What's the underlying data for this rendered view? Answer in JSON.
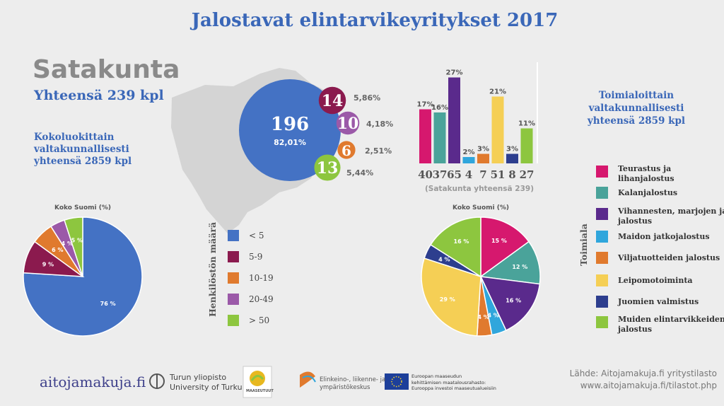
{
  "title": "Jalostavat elintarvikeyritykset  2017",
  "region": {
    "name": "Satakunta",
    "total": "Yhteensä 239 kpl"
  },
  "size_note": "Kokoluokittain valtakunnallisesti yhteensä 2859 kpl",
  "industry_note": "Toimialoittain valtakunnallisesti yhteensä 2859 kpl",
  "size_legend_title": "Henkilöstön määrä",
  "industry_legend_title": "Toimiala",
  "chart_data": [
    {
      "type": "bubble",
      "series_label": "Satakunta, henkilöstön määrä",
      "categories": [
        "< 5",
        "5-9",
        "10-19",
        "20-49",
        "> 50"
      ],
      "values": [
        196,
        14,
        6,
        10,
        13
      ],
      "value_labels": [
        "196",
        "14",
        "6",
        "10",
        "13"
      ],
      "percent_labels": [
        "82,01%",
        "5,86%",
        "2,51%",
        "4,18%",
        "5,44%"
      ],
      "colors": [
        "#4472c4",
        "#8b1a4e",
        "#e07a2e",
        "#9b59a8",
        "#8dc63f"
      ]
    },
    {
      "type": "pie",
      "title": "Koko Suomi (%)",
      "categories": [
        "< 5",
        "5-9",
        "10-19",
        "20-49",
        "> 50"
      ],
      "values": [
        76,
        9,
        6,
        4,
        5
      ],
      "labels": [
        "76 %",
        "9 %",
        "6 %",
        "4 %",
        "5 %"
      ],
      "colors": [
        "#4472c4",
        "#8b1a4e",
        "#e07a2e",
        "#9b59a8",
        "#8dc63f"
      ]
    },
    {
      "type": "bar",
      "xlabel": "(Satakunta yhteensä 239)",
      "categories": [
        "Teurastus ja lihanjalostus",
        "Kalanjalostus",
        "Vihannesten, marjojen ja hedelmien jalostus",
        "Maidon jatkojalostus",
        "Viljatuotteiden jalostus",
        "Leipomotoiminta",
        "Juomien valmistus",
        "Muiden elintarvikkeiden jalostus"
      ],
      "tick_labels": [
        "40",
        "37",
        "65",
        "4",
        "7",
        "51",
        "8",
        "27"
      ],
      "values": [
        17,
        16,
        27,
        2,
        3,
        21,
        3,
        11
      ],
      "value_labels": [
        "17%",
        "16%",
        "27%",
        "2%",
        "3%",
        "21%",
        "3%",
        "11%"
      ],
      "colors": [
        "#d6186e",
        "#4aa39a",
        "#5a2a8c",
        "#30a6dc",
        "#e07a2e",
        "#f5cf55",
        "#2d3e8e",
        "#8dc63f"
      ],
      "ylim": [
        0,
        30
      ]
    },
    {
      "type": "pie",
      "title": "Koko Suomi (%)",
      "categories": [
        "Teurastus ja lihanjalostus",
        "Kalanjalostus",
        "Vihannesten, marjojen ja hedelmien jalostus",
        "Maidon jatkojalostus",
        "Viljatuotteiden jalostus",
        "Leipomotoiminta",
        "Juomien valmistus",
        "Muiden elintarvikkeiden jalostus"
      ],
      "values": [
        15,
        12,
        16,
        4,
        4,
        29,
        4,
        16
      ],
      "labels": [
        "15 %",
        "12 %",
        "16 %",
        "4 %",
        "4 %",
        "29 %",
        "4 %",
        "16 %"
      ],
      "colors": [
        "#d6186e",
        "#4aa39a",
        "#5a2a8c",
        "#30a6dc",
        "#e07a2e",
        "#f5cf55",
        "#2d3e8e",
        "#8dc63f"
      ]
    }
  ],
  "size_legend": [
    {
      "label": "< 5",
      "color": "#4472c4"
    },
    {
      "label": "5-9",
      "color": "#8b1a4e"
    },
    {
      "label": "10-19",
      "color": "#e07a2e"
    },
    {
      "label": "20-49",
      "color": "#9b59a8"
    },
    {
      "label": "> 50",
      "color": "#8dc63f"
    }
  ],
  "industry_legend": [
    {
      "label": "Teurastus ja lihanjalostus",
      "color": "#d6186e"
    },
    {
      "label": "Kalanjalostus",
      "color": "#4aa39a"
    },
    {
      "label": "Vihannesten, marjojen ja hedelmien jalostus",
      "color": "#5a2a8c"
    },
    {
      "label": "Maidon jatkojalostus",
      "color": "#30a6dc"
    },
    {
      "label": "Viljatuotteiden jalostus",
      "color": "#e07a2e"
    },
    {
      "label": "Leipomotoiminta",
      "color": "#f5cf55"
    },
    {
      "label": "Juomien valmistus",
      "color": "#2d3e8e"
    },
    {
      "label": "Muiden elintarvikkeiden jalostus",
      "color": "#8dc63f"
    }
  ],
  "footer": {
    "site": "aitojamakuja.fi",
    "utu_line1": "Turun yliopisto",
    "utu_line2": "University of Turku",
    "maakunta_logo": "MAASEUTUUT",
    "ely_line1": "Elinkeino-, liikenne- ja",
    "ely_line2": "ympäristökeskus",
    "eu_line1": "Euroopan maaseudun",
    "eu_line2": "kehittämisen maatalousrahasto:",
    "eu_line3": "Eurooppa investoi maaseutualueisiin",
    "source_line1": "Lähde: Aitojamakuja.fi yritystilasto",
    "source_line2": "www.aitojamakuja.fi/tilastot.php"
  }
}
